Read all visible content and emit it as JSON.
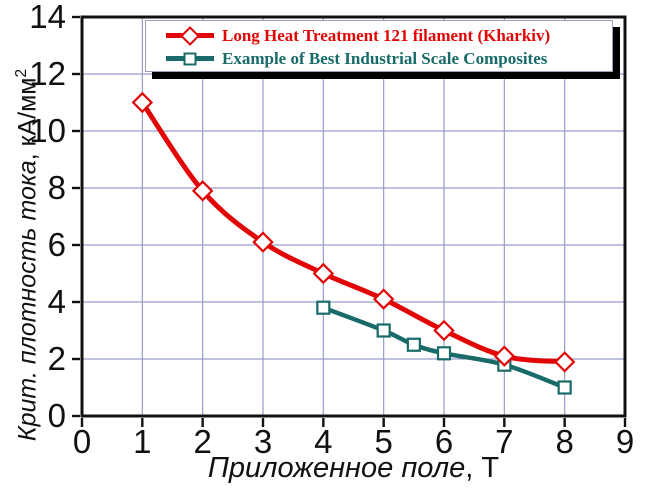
{
  "chart_data": {
    "type": "line",
    "title": "",
    "xlabel": "Приложенное поле",
    "xlabel_unit": ", Т",
    "ylabel": "Крит. плотность тока",
    "ylabel_unit": ", кА/мм",
    "ylabel_sup": "2",
    "xlim": [
      0,
      9
    ],
    "ylim": [
      0,
      14
    ],
    "x_ticks": [
      0,
      1,
      2,
      3,
      4,
      5,
      6,
      7,
      8,
      9
    ],
    "y_ticks": [
      0,
      2,
      4,
      6,
      8,
      10,
      12,
      14
    ],
    "grid": "on",
    "grid_color": "#989ccc",
    "axis_color": "#111111",
    "background_color": "#ffffff",
    "legend_position": "top-center",
    "series": [
      {
        "name": "Long Heat Treatment 121 filament (Kharkiv)",
        "color": "#e10505",
        "marker": "diamond",
        "line_width": 5,
        "x": [
          1,
          2,
          3,
          4,
          5,
          6,
          7,
          8
        ],
        "y": [
          11.0,
          7.9,
          6.1,
          5.0,
          4.1,
          3.0,
          2.1,
          1.9
        ]
      },
      {
        "name": "Example of Best Industrial Scale Composites",
        "color": "#186b68",
        "marker": "square",
        "line_width": 4.5,
        "x": [
          4,
          5,
          5.5,
          6,
          7,
          8
        ],
        "y": [
          3.8,
          3.0,
          2.5,
          2.2,
          1.8,
          1.0
        ]
      }
    ]
  }
}
